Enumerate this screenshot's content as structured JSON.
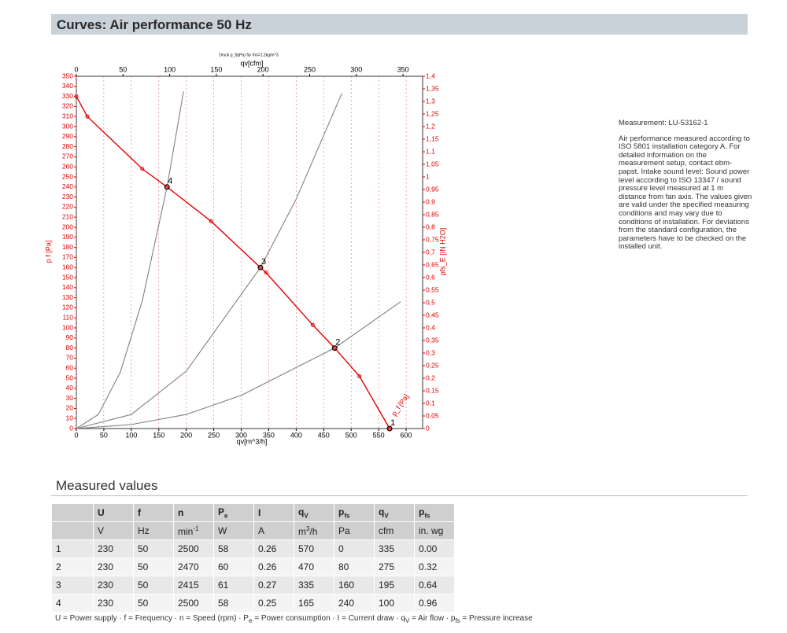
{
  "header": {
    "title": "Curves: Air performance 50 Hz"
  },
  "chart_data": {
    "type": "line",
    "title": "Druck p_f(qPa) für rho=1.2kg/m^3",
    "xlabel": "qv[m^3/h]",
    "x2label": "qv[cfm]",
    "ylabel": "p f [Pa]",
    "y2label": "pfs_E [IN H2O]",
    "xlim": [
      0,
      630
    ],
    "xticks": [
      0,
      50,
      100,
      150,
      200,
      250,
      300,
      350,
      400,
      450,
      500,
      550,
      600
    ],
    "x2lim": [
      0,
      371
    ],
    "x2ticks": [
      0,
      50,
      100,
      150,
      200,
      250,
      300,
      350
    ],
    "ylim": [
      0,
      350
    ],
    "yticks": [
      0,
      10,
      20,
      30,
      40,
      50,
      60,
      70,
      80,
      90,
      100,
      110,
      120,
      130,
      140,
      150,
      160,
      170,
      180,
      190,
      200,
      210,
      220,
      230,
      240,
      250,
      260,
      270,
      280,
      290,
      300,
      310,
      320,
      330,
      340,
      350
    ],
    "y2lim": [
      0,
      1.4
    ],
    "y2ticks": [
      0,
      {
        "value": 0.05,
        "label": "0,05"
      },
      {
        "value": 0.1,
        "label": "0,1"
      },
      {
        "value": 0.15,
        "label": "0,15"
      },
      {
        "value": 0.2,
        "label": "0,2"
      },
      {
        "value": 0.25,
        "label": "0,25"
      },
      {
        "value": 0.3,
        "label": "0,3"
      },
      {
        "value": 0.35,
        "label": "0,35"
      },
      {
        "value": 0.4,
        "label": "0,4"
      },
      {
        "value": 0.45,
        "label": "0,45"
      },
      {
        "value": 0.5,
        "label": "0,5"
      },
      {
        "value": 0.55,
        "label": "0,55"
      },
      {
        "value": 0.6,
        "label": "0,6"
      },
      {
        "value": 0.65,
        "label": "0,65"
      },
      {
        "value": 0.7,
        "label": "0,7"
      },
      {
        "value": 0.75,
        "label": "0,75"
      },
      {
        "value": 0.8,
        "label": "0,8"
      },
      {
        "value": 0.85,
        "label": "0,85"
      },
      {
        "value": 0.9,
        "label": "0,9"
      },
      {
        "value": 0.95,
        "label": "0,95"
      },
      1,
      {
        "value": 1.05,
        "label": "1,05"
      },
      {
        "value": 1.1,
        "label": "1,1"
      },
      {
        "value": 1.15,
        "label": "1,15"
      },
      {
        "value": 1.2,
        "label": "1,2"
      },
      {
        "value": 1.25,
        "label": "1,25"
      },
      {
        "value": 1.3,
        "label": "1,3"
      },
      {
        "value": 1.35,
        "label": "1,35"
      },
      {
        "value": 1.4,
        "label": "1,4"
      }
    ],
    "grid": true,
    "series": [
      {
        "name": "p_f [Pa]",
        "color": "#e00000",
        "markers": true,
        "x": [
          0,
          20,
          120,
          165,
          245,
          335,
          345,
          430,
          470,
          515,
          570
        ],
        "values": [
          330,
          310,
          258,
          240,
          206,
          160,
          155,
          103,
          80,
          52,
          0
        ]
      },
      {
        "color": "#808080",
        "x": [
          0,
          40,
          80,
          120,
          165,
          195
        ],
        "values": [
          0,
          14,
          56,
          127,
          240,
          335
        ]
      },
      {
        "color": "#808080",
        "x": [
          0,
          100,
          200,
          335,
          400,
          483
        ],
        "values": [
          0,
          14,
          57,
          160,
          228,
          333
        ]
      },
      {
        "color": "#808080",
        "x": [
          0,
          100,
          200,
          300,
          470,
          590
        ],
        "values": [
          0,
          4,
          14,
          33,
          80,
          126
        ]
      }
    ],
    "points": {
      "x": [
        570,
        470,
        335,
        165
      ],
      "values": [
        0,
        80,
        160,
        240
      ],
      "labels": [
        "1",
        "2",
        "3",
        "4"
      ]
    }
  },
  "measurement": {
    "title": "Measurement: LU-53162-1",
    "text": "Air performance measured according to ISO 5801 installation category A. For detailed information on the measurement setup, contact ebm-papst. Intake sound level: Sound power level according to ISO 13347 / sound pressure level measured at 1 m distance from fan axis. The values given are valid under the specified measuring conditions and may vary due to conditions of installation. For deviations from the standard configuration, the parameters have to be checked on the installed unit."
  },
  "table": {
    "title": "Measured values",
    "header": [
      "",
      "U",
      "f",
      "n",
      {
        "text": "P",
        "sub": "e"
      },
      "I",
      {
        "text": "q",
        "sub": "V"
      },
      {
        "text": "p",
        "sub": "fs"
      },
      {
        "text": "q",
        "sub": "V"
      },
      {
        "text": "p",
        "sub": "fs"
      }
    ],
    "units": [
      "",
      "V",
      "Hz",
      {
        "text": "min",
        "sup": "-1"
      },
      "W",
      "A",
      {
        "text": "m",
        "sup": "3",
        "after": "/h"
      },
      "Pa",
      "cfm",
      "in. wg"
    ],
    "rows": [
      [
        "1",
        "230",
        "50",
        "2500",
        "58",
        "0.26",
        "570",
        "0",
        "335",
        "0.00"
      ],
      [
        "2",
        "230",
        "50",
        "2470",
        "60",
        "0.26",
        "470",
        "80",
        "275",
        "0.32"
      ],
      [
        "3",
        "230",
        "50",
        "2415",
        "61",
        "0.27",
        "335",
        "160",
        "195",
        "0.64"
      ],
      [
        "4",
        "230",
        "50",
        "2500",
        "58",
        "0.25",
        "165",
        "240",
        "100",
        "0.96"
      ]
    ]
  },
  "footnote": {
    "separator": " · ",
    "items": [
      {
        "text": "U = Power supply"
      },
      {
        "text": "f = Frequency"
      },
      {
        "text": "n = Speed (rpm)"
      },
      {
        "text": "P",
        "sub": "e",
        "after": " = Power consumption"
      },
      {
        "text": "I = Current draw"
      },
      {
        "text": "q",
        "sub": "V",
        "after": " = Air flow"
      },
      {
        "text": "p",
        "sub": "fs",
        "after": " = Pressure increase"
      }
    ]
  }
}
